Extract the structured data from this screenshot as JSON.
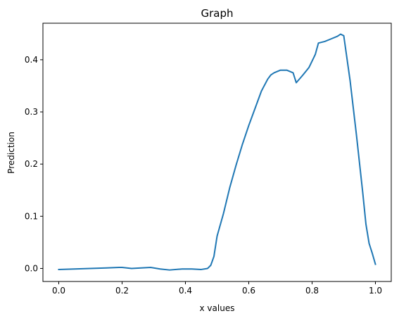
{
  "chart_data": {
    "type": "line",
    "title": "Graph",
    "xlabel": "x values",
    "ylabel": "Prediction",
    "xlim": [
      -0.05,
      1.05
    ],
    "ylim": [
      -0.025,
      0.47
    ],
    "xticks": [
      0.0,
      0.2,
      0.4,
      0.6,
      0.8,
      1.0
    ],
    "xtick_labels": [
      "0.0",
      "0.2",
      "0.4",
      "0.6",
      "0.8",
      "1.0"
    ],
    "yticks": [
      0.0,
      0.1,
      0.2,
      0.3,
      0.4
    ],
    "ytick_labels": [
      "0.0",
      "0.1",
      "0.2",
      "0.3",
      "0.4"
    ],
    "grid": false,
    "legend": false,
    "series": [
      {
        "color": "#1f77b4",
        "x": [
          0.0,
          0.05,
          0.1,
          0.15,
          0.19,
          0.2,
          0.23,
          0.26,
          0.29,
          0.32,
          0.35,
          0.39,
          0.42,
          0.45,
          0.47,
          0.48,
          0.49,
          0.5,
          0.52,
          0.54,
          0.56,
          0.58,
          0.6,
          0.62,
          0.64,
          0.66,
          0.67,
          0.68,
          0.7,
          0.72,
          0.74,
          0.75,
          0.77,
          0.79,
          0.81,
          0.82,
          0.84,
          0.86,
          0.88,
          0.89,
          0.9,
          0.92,
          0.94,
          0.96,
          0.97,
          0.98,
          0.99,
          1.0
        ],
        "y": [
          -0.002,
          -0.001,
          0.0,
          0.001,
          0.002,
          0.002,
          0.0,
          0.001,
          0.002,
          -0.001,
          -0.003,
          -0.001,
          -0.001,
          -0.002,
          0.0,
          0.006,
          0.023,
          0.062,
          0.105,
          0.155,
          0.198,
          0.238,
          0.274,
          0.307,
          0.34,
          0.363,
          0.371,
          0.375,
          0.38,
          0.38,
          0.375,
          0.356,
          0.37,
          0.385,
          0.41,
          0.432,
          0.435,
          0.44,
          0.445,
          0.449,
          0.446,
          0.36,
          0.256,
          0.145,
          0.085,
          0.048,
          0.029,
          0.008
        ]
      }
    ]
  }
}
